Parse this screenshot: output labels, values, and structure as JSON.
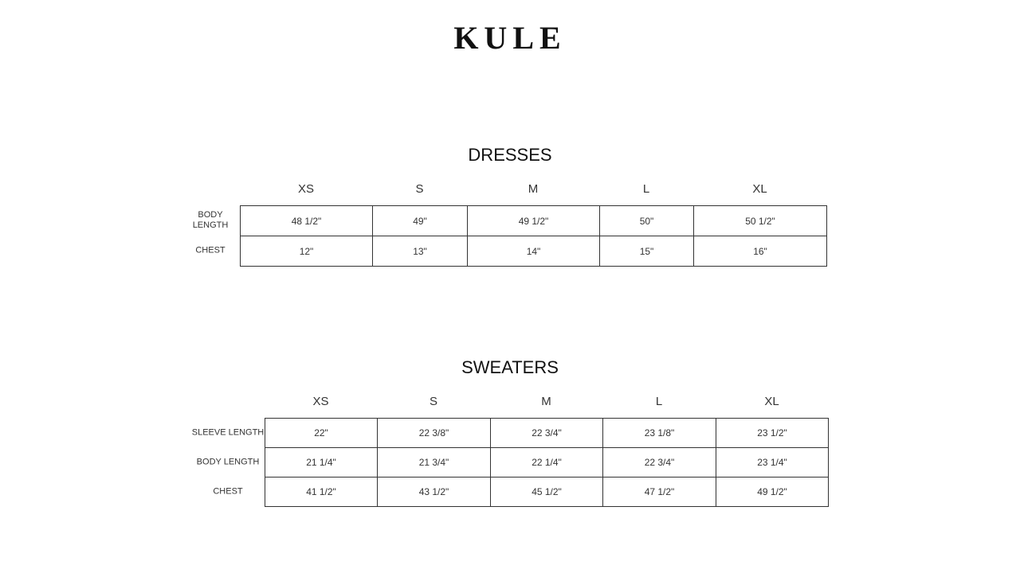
{
  "logo": "KULE",
  "dresses": {
    "title": "DRESSES",
    "sizes": [
      "XS",
      "S",
      "M",
      "L",
      "XL"
    ],
    "rows": [
      {
        "label": "BODY\nLENGTH",
        "values": [
          "48 1/2\"",
          "49\"",
          "49 1/2\"",
          "50\"",
          "50 1/2\""
        ]
      },
      {
        "label": "CHEST",
        "values": [
          "12\"",
          "13\"",
          "14\"",
          "15\"",
          "16\""
        ]
      }
    ]
  },
  "sweaters": {
    "title": "SWEATERS",
    "sizes": [
      "XS",
      "S",
      "M",
      "L",
      "XL"
    ],
    "rows": [
      {
        "label": "SLEEVE LENGTH",
        "values": [
          "22\"",
          "22 3/8\"",
          "22 3/4\"",
          "23 1/8\"",
          "23 1/2\""
        ]
      },
      {
        "label": "BODY LENGTH",
        "values": [
          "21 1/4\"",
          "21 3/4\"",
          "22 1/4\"",
          "22 3/4\"",
          "23 1/4\""
        ]
      },
      {
        "label": "CHEST",
        "values": [
          "41 1/2\"",
          "43 1/2\"",
          "45 1/2\"",
          "47 1/2\"",
          "49 1/2\""
        ]
      }
    ]
  }
}
